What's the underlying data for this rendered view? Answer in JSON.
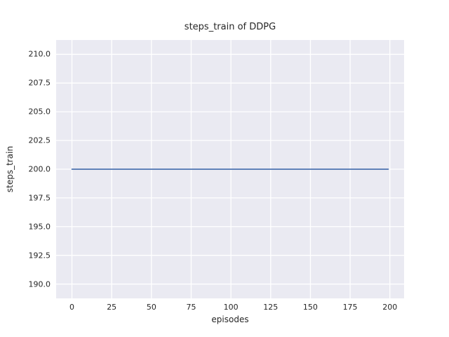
{
  "chart_data": {
    "type": "line",
    "title": "steps_train of DDPG",
    "xlabel": "episodes",
    "ylabel": "steps_train",
    "series": [
      {
        "name": "steps_train",
        "color": "#4c72b0",
        "x": [
          0,
          199
        ],
        "y": [
          200,
          200
        ],
        "note": "constant value 200 for all episodes 0-199"
      }
    ],
    "xticks": [
      0,
      25,
      50,
      75,
      100,
      125,
      150,
      175,
      200
    ],
    "xtick_labels": [
      "0",
      "25",
      "50",
      "75",
      "100",
      "125",
      "150",
      "175",
      "200"
    ],
    "yticks": [
      190.0,
      192.5,
      195.0,
      197.5,
      200.0,
      202.5,
      205.0,
      207.5,
      210.0
    ],
    "ytick_labels": [
      "190.0",
      "192.5",
      "195.0",
      "197.5",
      "200.0",
      "202.5",
      "205.0",
      "207.5",
      "210.0"
    ],
    "xlim": [
      -9.95,
      208.95
    ],
    "ylim": [
      188.75,
      211.25
    ],
    "grid": true,
    "legend": false,
    "plot_bg": "#eaeaf2",
    "grid_color": "#ffffff",
    "line_width": 1.8
  }
}
